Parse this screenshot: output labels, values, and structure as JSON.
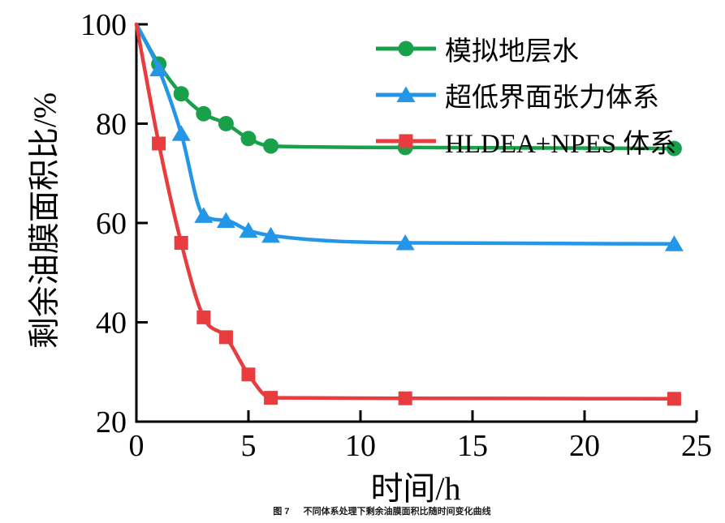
{
  "figure": {
    "background": "#ffffff",
    "caption_label": "图 7",
    "caption_text": "不同体系处理下剩余油膜面积比随时间变化曲线"
  },
  "chart_data": {
    "type": "line",
    "title": "",
    "xlabel": "时间/h",
    "ylabel": "剩余油膜面积比/%",
    "xlim": [
      0,
      25
    ],
    "ylim": [
      20,
      100
    ],
    "xticks": [
      0,
      5,
      10,
      15,
      20,
      25
    ],
    "yticks": [
      20,
      40,
      60,
      80,
      100
    ],
    "grid": false,
    "legend_position": "upper-right-inside",
    "axis_color": "#000000",
    "x": [
      0,
      1,
      2,
      3,
      4,
      5,
      6,
      12,
      24
    ],
    "series": [
      {
        "name": "模拟地层水",
        "marker": "circle",
        "color": "#18a04b",
        "values": [
          100,
          92,
          86,
          82,
          80,
          77,
          75.5,
          75.2,
          75
        ]
      },
      {
        "name": "超低界面张力体系",
        "marker": "triangle",
        "color": "#2496e8",
        "values": [
          100,
          91,
          78,
          61.5,
          60.5,
          58.5,
          57.5,
          56,
          55.8
        ]
      },
      {
        "name": "HLDEA+NPES 体系",
        "marker": "square",
        "color": "#e83c3e",
        "values": [
          100,
          76,
          56,
          41,
          37,
          29.5,
          24.8,
          24.7,
          24.6
        ]
      }
    ]
  }
}
